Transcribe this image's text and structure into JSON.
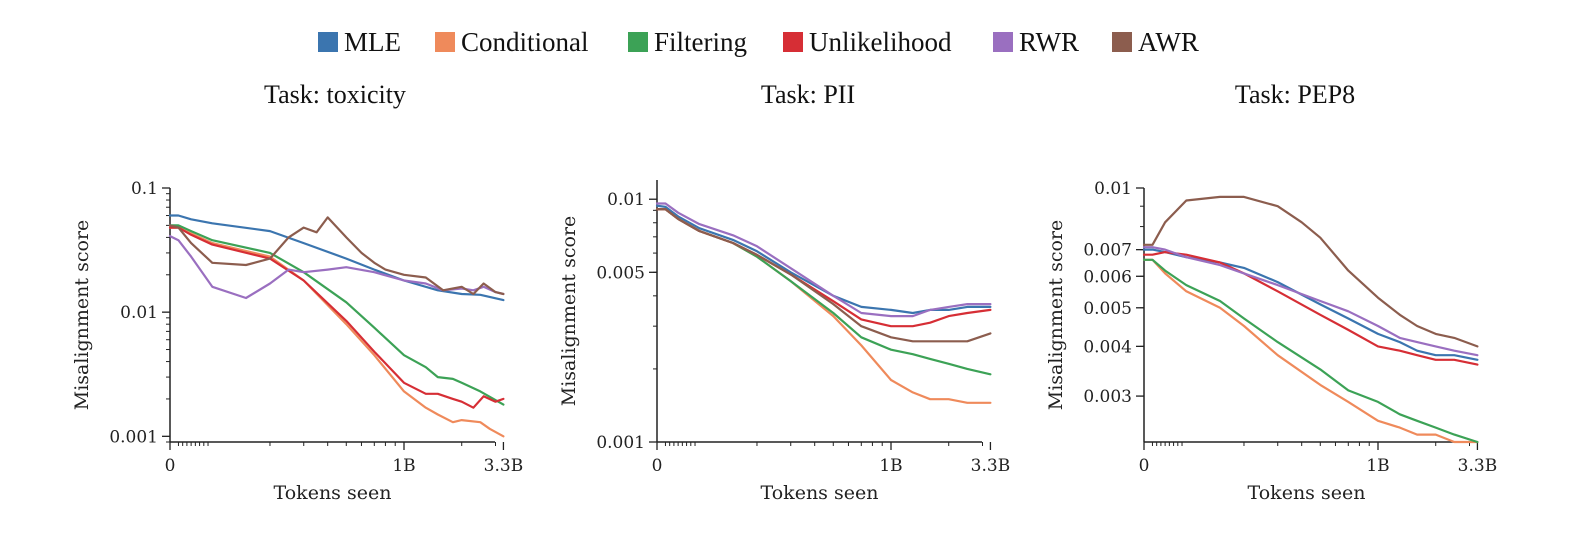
{
  "legend": [
    {
      "name": "MLE",
      "color": "#3b75af"
    },
    {
      "name": "Conditional",
      "color": "#ef8a5b"
    },
    {
      "name": "Filtering",
      "color": "#3ca256"
    },
    {
      "name": "Unlikelihood",
      "color": "#d62e35"
    },
    {
      "name": "RWR",
      "color": "#9a6fc0"
    },
    {
      "name": "AWR",
      "color": "#8c5d4e"
    }
  ],
  "chart_data": [
    {
      "type": "line",
      "title": "Task: toxicity",
      "xlabel": "Tokens seen",
      "ylabel": "Misalignment score",
      "x_scale": "symlog",
      "y_scale": "log",
      "xlim": [
        0,
        3.3
      ],
      "ylim": [
        0.0009,
        0.1
      ],
      "x_ticks": [
        {
          "value": 0,
          "label": "0"
        },
        {
          "value": 1,
          "label": "1B"
        },
        {
          "value": 3.3,
          "label": "3.3B"
        }
      ],
      "y_ticks": [
        {
          "value": 0.1,
          "label": "0.1"
        },
        {
          "value": 0.01,
          "label": "0.01"
        },
        {
          "value": 0.001,
          "label": "0.001"
        }
      ],
      "series": [
        {
          "name": "MLE",
          "x": [
            0,
            0.02,
            0.05,
            0.1,
            0.2,
            0.3,
            0.5,
            0.7,
            1.0,
            1.5,
            2.0,
            2.5,
            3.3
          ],
          "y": [
            0.06,
            0.06,
            0.056,
            0.052,
            0.045,
            0.036,
            0.027,
            0.022,
            0.018,
            0.015,
            0.014,
            0.0138,
            0.0125
          ]
        },
        {
          "name": "Conditional",
          "x": [
            0,
            0.02,
            0.05,
            0.1,
            0.2,
            0.3,
            0.5,
            0.7,
            1.0,
            1.3,
            1.5,
            1.8,
            2.0,
            2.5,
            2.8,
            3.3
          ],
          "y": [
            0.048,
            0.048,
            0.043,
            0.036,
            0.028,
            0.018,
            0.008,
            0.0045,
            0.0023,
            0.0017,
            0.0015,
            0.0013,
            0.00135,
            0.0013,
            0.00115,
            0.001
          ]
        },
        {
          "name": "Filtering",
          "x": [
            0,
            0.02,
            0.05,
            0.1,
            0.2,
            0.3,
            0.5,
            0.7,
            1.0,
            1.3,
            1.5,
            1.8,
            2.0,
            2.5,
            3.3
          ],
          "y": [
            0.05,
            0.05,
            0.045,
            0.038,
            0.03,
            0.021,
            0.012,
            0.0075,
            0.0045,
            0.0036,
            0.003,
            0.0029,
            0.0027,
            0.0023,
            0.0018
          ]
        },
        {
          "name": "Unlikelihood",
          "x": [
            0,
            0.02,
            0.05,
            0.1,
            0.2,
            0.3,
            0.5,
            0.7,
            1.0,
            1.3,
            1.5,
            1.8,
            2.0,
            2.3,
            2.6,
            3.0,
            3.3
          ],
          "y": [
            0.048,
            0.048,
            0.042,
            0.035,
            0.027,
            0.018,
            0.0085,
            0.0048,
            0.0027,
            0.0022,
            0.0022,
            0.002,
            0.0019,
            0.0017,
            0.0021,
            0.0019,
            0.002
          ]
        },
        {
          "name": "RWR",
          "x": [
            0,
            0.02,
            0.05,
            0.1,
            0.15,
            0.2,
            0.25,
            0.3,
            0.4,
            0.5,
            0.7,
            1.0,
            1.3,
            1.6,
            2.0,
            2.3,
            2.6,
            3.0,
            3.3
          ],
          "y": [
            0.041,
            0.038,
            0.028,
            0.016,
            0.013,
            0.017,
            0.022,
            0.021,
            0.022,
            0.023,
            0.021,
            0.018,
            0.017,
            0.015,
            0.0155,
            0.015,
            0.016,
            0.0145,
            0.014
          ]
        },
        {
          "name": "AWR",
          "x": [
            0,
            0.02,
            0.05,
            0.1,
            0.15,
            0.2,
            0.25,
            0.3,
            0.35,
            0.4,
            0.5,
            0.6,
            0.7,
            0.8,
            1.0,
            1.3,
            1.6,
            2.0,
            2.3,
            2.6,
            3.0,
            3.3
          ],
          "y": [
            0.05,
            0.048,
            0.036,
            0.025,
            0.024,
            0.027,
            0.04,
            0.048,
            0.044,
            0.058,
            0.04,
            0.03,
            0.025,
            0.022,
            0.02,
            0.019,
            0.015,
            0.016,
            0.014,
            0.017,
            0.0145,
            0.014
          ]
        }
      ]
    },
    {
      "type": "line",
      "title": "Task: PII",
      "xlabel": "Tokens seen",
      "ylabel": "Misalignment score",
      "x_scale": "symlog",
      "y_scale": "log",
      "xlim": [
        0,
        3.3
      ],
      "ylim": [
        0.001,
        0.012
      ],
      "x_ticks": [
        {
          "value": 0,
          "label": "0"
        },
        {
          "value": 1,
          "label": "1B"
        },
        {
          "value": 3.3,
          "label": "3.3B"
        }
      ],
      "y_ticks": [
        {
          "value": 0.01,
          "label": "0.01"
        },
        {
          "value": 0.005,
          "label": "0.005"
        },
        {
          "value": 0.001,
          "label": "0.001"
        }
      ],
      "series": [
        {
          "name": "MLE",
          "x": [
            0,
            0.02,
            0.05,
            0.1,
            0.15,
            0.2,
            0.3,
            0.5,
            0.7,
            1.0,
            1.3,
            1.6,
            2.0,
            2.5,
            3.3
          ],
          "y": [
            0.0094,
            0.0093,
            0.0085,
            0.0076,
            0.0068,
            0.0061,
            0.005,
            0.004,
            0.0036,
            0.0035,
            0.0034,
            0.0035,
            0.0035,
            0.0036,
            0.0036
          ]
        },
        {
          "name": "Conditional",
          "x": [
            0,
            0.02,
            0.05,
            0.1,
            0.15,
            0.2,
            0.3,
            0.5,
            0.7,
            1.0,
            1.3,
            1.6,
            2.0,
            2.5,
            3.3
          ],
          "y": [
            0.0091,
            0.0091,
            0.0083,
            0.0074,
            0.0066,
            0.0058,
            0.0046,
            0.0033,
            0.0025,
            0.0018,
            0.0016,
            0.0015,
            0.0015,
            0.00145,
            0.00145
          ]
        },
        {
          "name": "Filtering",
          "x": [
            0,
            0.02,
            0.05,
            0.1,
            0.15,
            0.2,
            0.3,
            0.5,
            0.7,
            1.0,
            1.3,
            1.6,
            2.0,
            2.5,
            3.3
          ],
          "y": [
            0.0091,
            0.0091,
            0.0083,
            0.0074,
            0.0066,
            0.0058,
            0.0046,
            0.0034,
            0.0027,
            0.0024,
            0.0023,
            0.0022,
            0.0021,
            0.002,
            0.0019
          ]
        },
        {
          "name": "Unlikelihood",
          "x": [
            0,
            0.02,
            0.05,
            0.1,
            0.15,
            0.2,
            0.3,
            0.5,
            0.7,
            1.0,
            1.3,
            1.6,
            2.0,
            2.5,
            3.3
          ],
          "y": [
            0.0091,
            0.0091,
            0.0083,
            0.0074,
            0.0066,
            0.0059,
            0.0049,
            0.0038,
            0.0032,
            0.003,
            0.003,
            0.0031,
            0.0033,
            0.0034,
            0.0035
          ]
        },
        {
          "name": "RWR",
          "x": [
            0,
            0.02,
            0.05,
            0.1,
            0.15,
            0.2,
            0.3,
            0.5,
            0.7,
            1.0,
            1.3,
            1.6,
            2.0,
            2.5,
            3.3
          ],
          "y": [
            0.0096,
            0.0096,
            0.0088,
            0.0079,
            0.0071,
            0.0064,
            0.0052,
            0.004,
            0.0034,
            0.0033,
            0.0033,
            0.0035,
            0.0036,
            0.0037,
            0.0037
          ]
        },
        {
          "name": "AWR",
          "x": [
            0,
            0.02,
            0.05,
            0.1,
            0.15,
            0.2,
            0.3,
            0.5,
            0.7,
            1.0,
            1.3,
            1.6,
            2.0,
            2.5,
            3.3
          ],
          "y": [
            0.0091,
            0.0091,
            0.0083,
            0.0074,
            0.0066,
            0.0059,
            0.0049,
            0.0037,
            0.003,
            0.0027,
            0.0026,
            0.0026,
            0.0026,
            0.0026,
            0.0028
          ]
        }
      ]
    },
    {
      "type": "line",
      "title": "Task: PEP8",
      "xlabel": "Tokens seen",
      "ylabel": "Misalignment score",
      "x_scale": "symlog",
      "y_scale": "log",
      "xlim": [
        0,
        3.3
      ],
      "ylim": [
        0.0023,
        0.01
      ],
      "x_ticks": [
        {
          "value": 0,
          "label": "0"
        },
        {
          "value": 1,
          "label": "1B"
        },
        {
          "value": 3.3,
          "label": "3.3B"
        }
      ],
      "y_ticks": [
        {
          "value": 0.01,
          "label": "0.01"
        },
        {
          "value": 0.007,
          "label": "0.007"
        },
        {
          "value": 0.006,
          "label": "0.006"
        },
        {
          "value": 0.005,
          "label": "0.005"
        },
        {
          "value": 0.004,
          "label": "0.004"
        },
        {
          "value": 0.003,
          "label": "0.003"
        }
      ],
      "series": [
        {
          "name": "MLE",
          "x": [
            0,
            0.02,
            0.05,
            0.1,
            0.15,
            0.2,
            0.3,
            0.5,
            0.7,
            1.0,
            1.3,
            1.6,
            2.0,
            2.5,
            3.3
          ],
          "y": [
            0.007,
            0.007,
            0.0069,
            0.0067,
            0.0065,
            0.0063,
            0.0058,
            0.0051,
            0.0047,
            0.0043,
            0.0041,
            0.0039,
            0.0038,
            0.0038,
            0.0037
          ]
        },
        {
          "name": "Conditional",
          "x": [
            0,
            0.02,
            0.05,
            0.1,
            0.15,
            0.2,
            0.3,
            0.5,
            0.7,
            1.0,
            1.3,
            1.6,
            2.0,
            2.5,
            3.3
          ],
          "y": [
            0.0066,
            0.0066,
            0.0061,
            0.0055,
            0.005,
            0.0045,
            0.0038,
            0.0032,
            0.0029,
            0.0026,
            0.0025,
            0.0024,
            0.0024,
            0.0023,
            0.0023
          ]
        },
        {
          "name": "Filtering",
          "x": [
            0,
            0.02,
            0.05,
            0.1,
            0.15,
            0.2,
            0.3,
            0.5,
            0.7,
            1.0,
            1.3,
            1.6,
            2.0,
            2.5,
            3.3
          ],
          "y": [
            0.0066,
            0.0066,
            0.0062,
            0.0057,
            0.0052,
            0.0047,
            0.0041,
            0.0035,
            0.0031,
            0.0029,
            0.0027,
            0.0026,
            0.0025,
            0.0024,
            0.0023
          ]
        },
        {
          "name": "Unlikelihood",
          "x": [
            0,
            0.02,
            0.05,
            0.1,
            0.15,
            0.2,
            0.3,
            0.5,
            0.7,
            1.0,
            1.3,
            1.6,
            2.0,
            2.5,
            3.3
          ],
          "y": [
            0.0068,
            0.0068,
            0.0069,
            0.0068,
            0.0065,
            0.0061,
            0.0055,
            0.0048,
            0.0044,
            0.004,
            0.0039,
            0.0038,
            0.0037,
            0.0037,
            0.0036
          ]
        },
        {
          "name": "RWR",
          "x": [
            0,
            0.02,
            0.05,
            0.1,
            0.15,
            0.2,
            0.3,
            0.5,
            0.7,
            1.0,
            1.3,
            1.6,
            2.0,
            2.5,
            3.3
          ],
          "y": [
            0.0071,
            0.0071,
            0.007,
            0.0067,
            0.0064,
            0.0061,
            0.0057,
            0.0052,
            0.0049,
            0.0045,
            0.0042,
            0.0041,
            0.004,
            0.0039,
            0.0038
          ]
        },
        {
          "name": "AWR",
          "x": [
            0,
            0.02,
            0.05,
            0.1,
            0.15,
            0.2,
            0.3,
            0.4,
            0.5,
            0.7,
            1.0,
            1.3,
            1.6,
            2.0,
            2.5,
            3.3
          ],
          "y": [
            0.0072,
            0.0072,
            0.0082,
            0.0093,
            0.0095,
            0.0095,
            0.009,
            0.0082,
            0.0075,
            0.0062,
            0.0053,
            0.0048,
            0.0045,
            0.0043,
            0.0042,
            0.004
          ]
        }
      ]
    }
  ]
}
